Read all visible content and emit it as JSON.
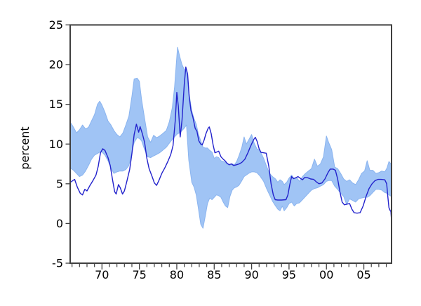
{
  "chart_data": {
    "type": "line",
    "title": "",
    "xlabel": "",
    "ylabel": "percent",
    "xlim": [
      1965.75,
      2008.7
    ],
    "ylim": [
      -5,
      25
    ],
    "grid": false,
    "legend": "none",
    "y_ticks": [
      -5,
      0,
      5,
      10,
      15,
      20,
      25
    ],
    "y_tick_labels": [
      "-5",
      "0",
      "5",
      "10",
      "15",
      "20",
      "25"
    ],
    "x_major_ticks": [
      1970,
      1975,
      1980,
      1985,
      1990,
      1995,
      2000,
      2005
    ],
    "x_major_tick_labels": [
      "70",
      "75",
      "80",
      "85",
      "90",
      "95",
      "00",
      "05"
    ],
    "x_minor_interval": 1,
    "colors": {
      "band": "#a0c4f5",
      "band_edge": "#8ab4ef",
      "line": "#2222cc",
      "frame": "#3f3f3f",
      "text": "#000000",
      "background": "#ffffff"
    },
    "series": [
      {
        "name": "band",
        "kind": "band",
        "points": [
          [
            1965.75,
            7.0,
            12.8
          ],
          [
            1966.2,
            6.7,
            12.1
          ],
          [
            1966.6,
            6.3,
            11.4
          ],
          [
            1967.0,
            5.9,
            11.8
          ],
          [
            1967.4,
            6.1,
            12.4
          ],
          [
            1967.8,
            6.6,
            11.9
          ],
          [
            1968.2,
            7.3,
            12.1
          ],
          [
            1968.6,
            8.1,
            12.9
          ],
          [
            1969.0,
            8.6,
            13.7
          ],
          [
            1969.4,
            8.8,
            15.0
          ],
          [
            1969.7,
            9.0,
            15.4
          ],
          [
            1970.0,
            9.0,
            14.9
          ],
          [
            1970.4,
            8.6,
            14.0
          ],
          [
            1970.8,
            7.9,
            12.9
          ],
          [
            1971.2,
            7.0,
            12.4
          ],
          [
            1971.6,
            6.3,
            11.7
          ],
          [
            1972.0,
            6.5,
            11.2
          ],
          [
            1972.4,
            6.6,
            10.9
          ],
          [
            1972.8,
            6.6,
            11.4
          ],
          [
            1973.2,
            6.8,
            12.4
          ],
          [
            1973.6,
            7.3,
            13.5
          ],
          [
            1974.0,
            9.0,
            16.0
          ],
          [
            1974.3,
            10.2,
            18.2
          ],
          [
            1974.7,
            10.8,
            18.3
          ],
          [
            1975.0,
            10.7,
            17.9
          ],
          [
            1975.3,
            10.4,
            15.6
          ],
          [
            1975.7,
            9.3,
            13.2
          ],
          [
            1976.1,
            8.4,
            10.9
          ],
          [
            1976.5,
            8.3,
            10.2
          ],
          [
            1976.9,
            8.5,
            11.1
          ],
          [
            1977.3,
            8.7,
            10.8
          ],
          [
            1977.7,
            8.9,
            11.0
          ],
          [
            1978.1,
            9.2,
            11.3
          ],
          [
            1978.6,
            9.6,
            11.7
          ],
          [
            1979.0,
            10.1,
            12.8
          ],
          [
            1979.4,
            10.6,
            14.6
          ],
          [
            1979.7,
            10.9,
            17.2
          ],
          [
            1980.1,
            11.3,
            22.2
          ],
          [
            1980.4,
            11.4,
            21.0
          ],
          [
            1980.7,
            11.7,
            20.0
          ],
          [
            1981.0,
            12.0,
            19.4
          ],
          [
            1981.3,
            12.4,
            19.2
          ],
          [
            1981.6,
            8.0,
            16.6
          ],
          [
            1982.0,
            5.2,
            14.2
          ],
          [
            1982.3,
            4.6,
            13.2
          ],
          [
            1982.6,
            3.6,
            12.5
          ],
          [
            1982.9,
            1.8,
            11.2
          ],
          [
            1983.2,
            -0.1,
            10.4
          ],
          [
            1983.5,
            -0.6,
            9.6
          ],
          [
            1983.8,
            0.9,
            9.5
          ],
          [
            1984.1,
            2.5,
            9.5
          ],
          [
            1984.4,
            3.2,
            9.2
          ],
          [
            1984.7,
            3.0,
            9.0
          ],
          [
            1985.0,
            3.3,
            8.2
          ],
          [
            1985.3,
            3.6,
            8.4
          ],
          [
            1985.6,
            3.5,
            8.3
          ],
          [
            1985.9,
            3.3,
            7.9
          ],
          [
            1986.2,
            2.7,
            7.8
          ],
          [
            1986.5,
            2.2,
            7.7
          ],
          [
            1986.8,
            2.0,
            7.4
          ],
          [
            1987.1,
            3.4,
            7.3
          ],
          [
            1987.4,
            4.2,
            7.5
          ],
          [
            1987.7,
            4.5,
            7.4
          ],
          [
            1988.0,
            4.6,
            7.8
          ],
          [
            1988.3,
            4.8,
            8.5
          ],
          [
            1988.7,
            5.4,
            9.6
          ],
          [
            1989.0,
            5.9,
            10.9
          ],
          [
            1989.3,
            6.1,
            10.0
          ],
          [
            1989.6,
            6.3,
            10.5
          ],
          [
            1990.0,
            6.5,
            11.2
          ],
          [
            1990.35,
            6.5,
            10.1
          ],
          [
            1990.7,
            6.4,
            9.4
          ],
          [
            1991.1,
            6.0,
            9.2
          ],
          [
            1991.6,
            5.3,
            8.2
          ],
          [
            1992.0,
            4.4,
            7.2
          ],
          [
            1992.4,
            3.6,
            6.3
          ],
          [
            1992.8,
            2.8,
            5.9
          ],
          [
            1993.2,
            2.2,
            5.6
          ],
          [
            1993.5,
            1.8,
            5.2
          ],
          [
            1993.8,
            1.6,
            5.5
          ],
          [
            1994.1,
            2.2,
            5.3
          ],
          [
            1994.35,
            1.6,
            4.9
          ],
          [
            1994.7,
            2.0,
            5.2
          ],
          [
            1995.0,
            2.5,
            5.7
          ],
          [
            1995.35,
            2.7,
            6.1
          ],
          [
            1995.7,
            2.2,
            5.6
          ],
          [
            1996.0,
            2.5,
            5.8
          ],
          [
            1996.4,
            2.6,
            5.3
          ],
          [
            1996.8,
            3.0,
            5.9
          ],
          [
            1997.2,
            3.4,
            6.3
          ],
          [
            1997.6,
            3.8,
            6.6
          ],
          [
            1998.0,
            4.2,
            6.9
          ],
          [
            1998.4,
            4.4,
            8.1
          ],
          [
            1998.8,
            4.5,
            7.2
          ],
          [
            1999.2,
            4.7,
            7.5
          ],
          [
            1999.6,
            4.9,
            8.4
          ],
          [
            2000.0,
            5.3,
            11.0
          ],
          [
            2000.3,
            5.4,
            10.2
          ],
          [
            2000.7,
            5.4,
            9.3
          ],
          [
            2001.1,
            4.7,
            7.1
          ],
          [
            2001.5,
            4.3,
            6.9
          ],
          [
            2001.9,
            3.8,
            6.3
          ],
          [
            2002.3,
            3.4,
            5.6
          ],
          [
            2002.7,
            2.4,
            5.3
          ],
          [
            2003.1,
            3.1,
            5.5
          ],
          [
            2003.5,
            2.9,
            5.1
          ],
          [
            2003.9,
            2.7,
            4.9
          ],
          [
            2004.3,
            3.1,
            5.5
          ],
          [
            2004.7,
            3.2,
            6.3
          ],
          [
            2005.1,
            3.3,
            6.6
          ],
          [
            2005.45,
            3.3,
            7.9
          ],
          [
            2005.8,
            3.5,
            6.7
          ],
          [
            2006.2,
            3.9,
            6.7
          ],
          [
            2006.6,
            4.3,
            6.3
          ],
          [
            2007.0,
            4.3,
            6.4
          ],
          [
            2007.4,
            4.2,
            6.6
          ],
          [
            2007.8,
            3.9,
            6.5
          ],
          [
            2008.1,
            3.8,
            7.0
          ],
          [
            2008.35,
            3.6,
            7.8
          ],
          [
            2008.7,
            3.4,
            7.4
          ]
        ]
      },
      {
        "name": "line",
        "kind": "line",
        "points": [
          [
            1965.75,
            5.15
          ],
          [
            1966.1,
            5.4
          ],
          [
            1966.35,
            5.55
          ],
          [
            1966.7,
            4.6
          ],
          [
            1967.1,
            3.8
          ],
          [
            1967.4,
            3.6
          ],
          [
            1967.7,
            4.3
          ],
          [
            1968.0,
            4.1
          ],
          [
            1968.4,
            4.8
          ],
          [
            1968.8,
            5.4
          ],
          [
            1969.2,
            6.1
          ],
          [
            1969.5,
            7.2
          ],
          [
            1969.8,
            8.9
          ],
          [
            1970.1,
            9.4
          ],
          [
            1970.4,
            9.2
          ],
          [
            1970.8,
            8.3
          ],
          [
            1971.1,
            7.3
          ],
          [
            1971.4,
            5.6
          ],
          [
            1971.7,
            4.0
          ],
          [
            1971.9,
            3.7
          ],
          [
            1972.2,
            4.9
          ],
          [
            1972.45,
            4.5
          ],
          [
            1972.75,
            3.7
          ],
          [
            1973.0,
            4.1
          ],
          [
            1973.3,
            5.2
          ],
          [
            1973.7,
            6.8
          ],
          [
            1974.0,
            8.8
          ],
          [
            1974.3,
            11.2
          ],
          [
            1974.6,
            12.5
          ],
          [
            1974.9,
            11.5
          ],
          [
            1975.1,
            12.2
          ],
          [
            1975.4,
            11.3
          ],
          [
            1975.7,
            10.2
          ],
          [
            1976.0,
            8.2
          ],
          [
            1976.3,
            6.9
          ],
          [
            1976.7,
            5.9
          ],
          [
            1977.0,
            5.1
          ],
          [
            1977.3,
            4.8
          ],
          [
            1977.6,
            5.4
          ],
          [
            1978.0,
            6.3
          ],
          [
            1978.4,
            7.0
          ],
          [
            1978.8,
            7.8
          ],
          [
            1979.2,
            8.7
          ],
          [
            1979.5,
            9.8
          ],
          [
            1979.8,
            13.0
          ],
          [
            1980.0,
            16.5
          ],
          [
            1980.2,
            14.8
          ],
          [
            1980.45,
            10.9
          ],
          [
            1980.7,
            13.0
          ],
          [
            1981.0,
            17.5
          ],
          [
            1981.2,
            19.7
          ],
          [
            1981.45,
            18.8
          ],
          [
            1981.65,
            16.0
          ],
          [
            1981.9,
            14.2
          ],
          [
            1982.15,
            13.4
          ],
          [
            1982.45,
            12.0
          ],
          [
            1982.7,
            11.6
          ],
          [
            1982.95,
            10.4
          ],
          [
            1983.2,
            10.0
          ],
          [
            1983.4,
            9.9
          ],
          [
            1983.65,
            10.5
          ],
          [
            1983.9,
            11.3
          ],
          [
            1984.2,
            12.0
          ],
          [
            1984.35,
            12.15
          ],
          [
            1984.6,
            11.3
          ],
          [
            1984.85,
            9.9
          ],
          [
            1985.1,
            8.9
          ],
          [
            1985.35,
            9.0
          ],
          [
            1985.6,
            9.1
          ],
          [
            1985.9,
            8.4
          ],
          [
            1986.2,
            8.1
          ],
          [
            1986.45,
            7.9
          ],
          [
            1986.7,
            7.6
          ],
          [
            1987.0,
            7.4
          ],
          [
            1987.3,
            7.5
          ],
          [
            1987.6,
            7.3
          ],
          [
            1988.0,
            7.4
          ],
          [
            1988.35,
            7.5
          ],
          [
            1988.7,
            7.7
          ],
          [
            1989.1,
            8.1
          ],
          [
            1989.5,
            8.9
          ],
          [
            1989.8,
            9.6
          ],
          [
            1990.05,
            10.1
          ],
          [
            1990.3,
            10.6
          ],
          [
            1990.5,
            10.85
          ],
          [
            1990.75,
            10.3
          ],
          [
            1991.0,
            9.4
          ],
          [
            1991.25,
            8.95
          ],
          [
            1991.6,
            8.9
          ],
          [
            1991.95,
            8.85
          ],
          [
            1992.3,
            7.2
          ],
          [
            1992.6,
            5.0
          ],
          [
            1992.9,
            3.6
          ],
          [
            1993.15,
            3.0
          ],
          [
            1993.5,
            2.95
          ],
          [
            1994.0,
            2.95
          ],
          [
            1994.6,
            3.0
          ],
          [
            1994.85,
            3.6
          ],
          [
            1995.1,
            4.9
          ],
          [
            1995.35,
            5.9
          ],
          [
            1995.6,
            5.65
          ],
          [
            1995.9,
            5.75
          ],
          [
            1996.2,
            5.9
          ],
          [
            1996.5,
            5.7
          ],
          [
            1996.8,
            5.5
          ],
          [
            1997.1,
            5.8
          ],
          [
            1997.5,
            5.75
          ],
          [
            1997.9,
            5.6
          ],
          [
            1998.3,
            5.55
          ],
          [
            1998.7,
            5.2
          ],
          [
            1999.0,
            5.0
          ],
          [
            1999.4,
            5.1
          ],
          [
            1999.8,
            5.6
          ],
          [
            2000.2,
            6.4
          ],
          [
            2000.5,
            6.85
          ],
          [
            2000.9,
            6.85
          ],
          [
            2001.2,
            6.7
          ],
          [
            2001.5,
            5.6
          ],
          [
            2001.8,
            4.0
          ],
          [
            2002.1,
            2.7
          ],
          [
            2002.4,
            2.35
          ],
          [
            2002.8,
            2.45
          ],
          [
            2003.1,
            2.5
          ],
          [
            2003.4,
            1.8
          ],
          [
            2003.7,
            1.35
          ],
          [
            2004.1,
            1.3
          ],
          [
            2004.5,
            1.35
          ],
          [
            2004.9,
            2.2
          ],
          [
            2005.3,
            3.4
          ],
          [
            2005.7,
            4.4
          ],
          [
            2006.1,
            5.0
          ],
          [
            2006.5,
            5.4
          ],
          [
            2006.9,
            5.55
          ],
          [
            2007.3,
            5.55
          ],
          [
            2007.8,
            5.5
          ],
          [
            2008.05,
            5.0
          ],
          [
            2008.2,
            3.4
          ],
          [
            2008.35,
            2.0
          ],
          [
            2008.5,
            1.65
          ],
          [
            2008.62,
            1.5
          ],
          [
            2008.7,
            0.35
          ]
        ]
      }
    ]
  }
}
